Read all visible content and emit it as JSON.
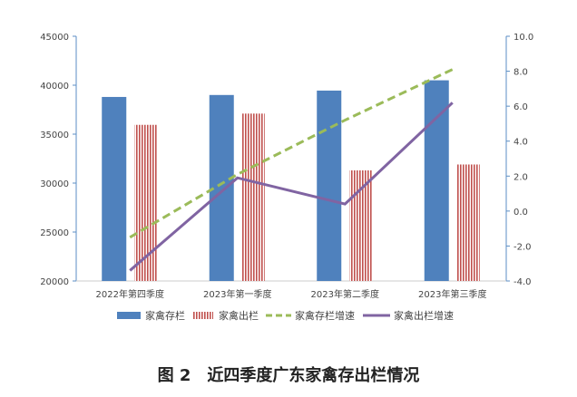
{
  "chart_data": {
    "type": "bar+line",
    "title": "",
    "categories": [
      "2022年第四季度",
      "2023年第一季度",
      "2023年第二季度",
      "2023年第三季度"
    ],
    "y_left": {
      "range": [
        20000,
        45000
      ],
      "ticks": [
        "20000",
        "25000",
        "30000",
        "35000",
        "40000",
        "45000"
      ]
    },
    "y_right": {
      "range": [
        -4,
        10
      ],
      "ticks": [
        "-4.0",
        "-2.0",
        "0.0",
        "2.0",
        "4.0",
        "6.0",
        "8.0",
        "10.0"
      ]
    },
    "series": [
      {
        "name": "家禽存栏",
        "kind": "bar",
        "axis": "left",
        "color": "#4f81bd",
        "values": [
          38800,
          39000,
          39450,
          40500
        ]
      },
      {
        "name": "家禽出栏",
        "kind": "bar-striped",
        "axis": "left",
        "color": "#c0504d",
        "values": [
          35950,
          37100,
          31300,
          31900
        ]
      },
      {
        "name": "家禽存栏增速",
        "kind": "line-dashed",
        "axis": "right",
        "color": "#9bbb59",
        "values": [
          -1.5,
          2.1,
          5.2,
          8.1
        ]
      },
      {
        "name": "家禽出栏增速",
        "kind": "line",
        "axis": "right",
        "color": "#8064a2",
        "values": [
          -3.4,
          1.9,
          0.4,
          6.2
        ]
      }
    ],
    "legend": "bottom"
  },
  "caption": "图 2　近四季度广东家禽存出栏情况"
}
